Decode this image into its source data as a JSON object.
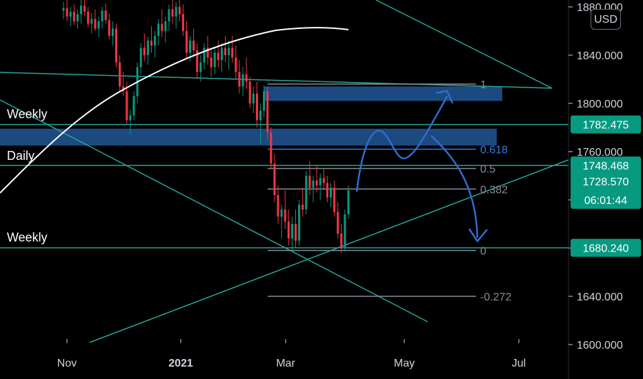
{
  "chart_data": {
    "type": "candlestick",
    "instrument_currency": "USD",
    "x_ticks": [
      "Nov",
      "2021",
      "Mar",
      "May",
      "Jul"
    ],
    "y_ticks": [
      "1600.000",
      "1640.000",
      "1680.000",
      "1720.000",
      "1760.000",
      "1800.000",
      "1840.000",
      "1880.000"
    ],
    "ylim": [
      1597,
      1885
    ],
    "price_tags": [
      {
        "value": "1782.475",
        "color": "#089981"
      },
      {
        "value": "1748.468",
        "color": "#089981"
      },
      {
        "value": "1728.570",
        "sub": "06:01:44",
        "color": "#089981"
      },
      {
        "value": "1680.240",
        "color": "#089981"
      }
    ],
    "level_labels": [
      {
        "text": "Weekly",
        "price": 1782.475
      },
      {
        "text": "Daily",
        "price": 1748.468
      },
      {
        "text": "Weekly",
        "price": 1680.24
      }
    ],
    "fib_levels": [
      {
        "label": "1",
        "price": 1816,
        "color": "#8a8d96"
      },
      {
        "label": "0.618",
        "price": 1762,
        "color": "#2f7de1"
      },
      {
        "label": "0.5",
        "price": 1746,
        "color": "#8a8d96"
      },
      {
        "label": "0.382",
        "price": 1729,
        "color": "#8a8d96"
      },
      {
        "label": "0",
        "price": 1678,
        "color": "#8a8d96"
      },
      {
        "label": "-0.272",
        "price": 1640,
        "color": "#8a8d96"
      }
    ],
    "zones": [
      {
        "price_top": 1814,
        "price_bottom": 1802,
        "color": "#1c4a80"
      },
      {
        "price_top": 1779,
        "price_bottom": 1765,
        "color": "#1c4a80"
      }
    ],
    "moving_average_color": "#ffffff",
    "up_color": "#089981",
    "down_color": "#f23645",
    "line_color": "#26a69a",
    "projection_color": "#2f6dd0",
    "candles": [
      [
        1877,
        1884,
        1870,
        1879
      ],
      [
        1879,
        1887,
        1868,
        1872
      ],
      [
        1872,
        1880,
        1864,
        1876
      ],
      [
        1876,
        1882,
        1865,
        1868
      ],
      [
        1868,
        1878,
        1862,
        1874
      ],
      [
        1874,
        1886,
        1866,
        1881
      ],
      [
        1881,
        1887,
        1873,
        1876
      ],
      [
        1876,
        1880,
        1863,
        1866
      ],
      [
        1866,
        1875,
        1858,
        1870
      ],
      [
        1870,
        1878,
        1860,
        1862
      ],
      [
        1862,
        1872,
        1855,
        1868
      ],
      [
        1868,
        1880,
        1862,
        1877
      ],
      [
        1877,
        1883,
        1866,
        1869
      ],
      [
        1869,
        1874,
        1853,
        1856
      ],
      [
        1856,
        1868,
        1848,
        1862
      ],
      [
        1862,
        1866,
        1830,
        1834
      ],
      [
        1834,
        1840,
        1810,
        1814
      ],
      [
        1814,
        1826,
        1806,
        1810
      ],
      [
        1810,
        1818,
        1783,
        1786
      ],
      [
        1786,
        1795,
        1774,
        1790
      ],
      [
        1790,
        1810,
        1786,
        1806
      ],
      [
        1806,
        1834,
        1800,
        1830
      ],
      [
        1830,
        1850,
        1824,
        1846
      ],
      [
        1846,
        1858,
        1835,
        1840
      ],
      [
        1840,
        1855,
        1832,
        1852
      ],
      [
        1852,
        1864,
        1842,
        1848
      ],
      [
        1848,
        1860,
        1838,
        1856
      ],
      [
        1856,
        1870,
        1848,
        1866
      ],
      [
        1866,
        1878,
        1855,
        1860
      ],
      [
        1860,
        1872,
        1850,
        1868
      ],
      [
        1868,
        1882,
        1860,
        1878
      ],
      [
        1878,
        1888,
        1866,
        1872
      ],
      [
        1872,
        1884,
        1862,
        1880
      ],
      [
        1880,
        1888,
        1868,
        1874
      ],
      [
        1874,
        1882,
        1856,
        1860
      ],
      [
        1860,
        1868,
        1838,
        1842
      ],
      [
        1842,
        1856,
        1835,
        1852
      ],
      [
        1852,
        1862,
        1838,
        1844
      ],
      [
        1844,
        1850,
        1820,
        1826
      ],
      [
        1826,
        1840,
        1818,
        1834
      ],
      [
        1834,
        1850,
        1828,
        1846
      ],
      [
        1846,
        1856,
        1832,
        1838
      ],
      [
        1838,
        1844,
        1822,
        1830
      ],
      [
        1830,
        1846,
        1824,
        1842
      ],
      [
        1842,
        1852,
        1830,
        1836
      ],
      [
        1836,
        1850,
        1826,
        1846
      ],
      [
        1846,
        1856,
        1834,
        1840
      ],
      [
        1840,
        1852,
        1828,
        1846
      ],
      [
        1846,
        1856,
        1834,
        1838
      ],
      [
        1838,
        1848,
        1820,
        1826
      ],
      [
        1826,
        1836,
        1808,
        1814
      ],
      [
        1814,
        1830,
        1806,
        1824
      ],
      [
        1824,
        1838,
        1812,
        1818
      ],
      [
        1818,
        1822,
        1796,
        1800
      ],
      [
        1800,
        1814,
        1792,
        1808
      ],
      [
        1808,
        1818,
        1780,
        1786
      ],
      [
        1786,
        1800,
        1766,
        1794
      ],
      [
        1794,
        1815,
        1788,
        1810
      ],
      [
        1810,
        1814,
        1770,
        1776
      ],
      [
        1776,
        1780,
        1746,
        1750
      ],
      [
        1750,
        1758,
        1718,
        1724
      ],
      [
        1724,
        1732,
        1700,
        1706
      ],
      [
        1706,
        1716,
        1688,
        1712
      ],
      [
        1712,
        1728,
        1696,
        1702
      ],
      [
        1702,
        1712,
        1682,
        1688
      ],
      [
        1688,
        1706,
        1678,
        1700
      ],
      [
        1700,
        1712,
        1680,
        1686
      ],
      [
        1686,
        1720,
        1682,
        1716
      ],
      [
        1716,
        1730,
        1706,
        1712
      ],
      [
        1712,
        1744,
        1708,
        1740
      ],
      [
        1740,
        1752,
        1724,
        1730
      ],
      [
        1730,
        1740,
        1718,
        1736
      ],
      [
        1736,
        1748,
        1726,
        1732
      ],
      [
        1732,
        1742,
        1720,
        1738
      ],
      [
        1738,
        1746,
        1728,
        1734
      ],
      [
        1734,
        1740,
        1718,
        1722
      ],
      [
        1722,
        1734,
        1714,
        1730
      ],
      [
        1730,
        1736,
        1706,
        1710
      ],
      [
        1710,
        1718,
        1688,
        1692
      ],
      [
        1692,
        1700,
        1676,
        1680
      ],
      [
        1680,
        1712,
        1678,
        1708
      ],
      [
        1708,
        1732,
        1704,
        1728
      ]
    ]
  }
}
